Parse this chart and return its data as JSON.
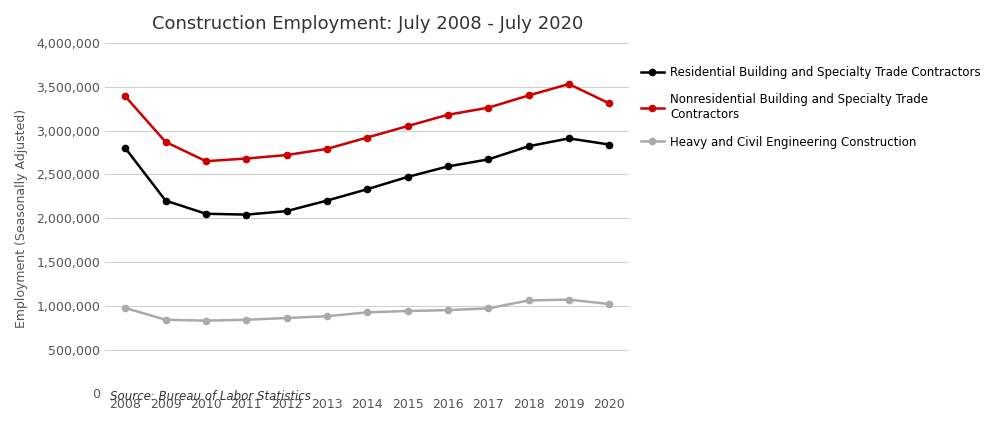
{
  "title": "Construction Employment: July 2008 - July 2020",
  "ylabel": "Employment (Seasonally Adjusted)",
  "source": "Source: Bureau of Labor Statistics",
  "years": [
    2008,
    2009,
    2010,
    2011,
    2012,
    2013,
    2014,
    2015,
    2016,
    2017,
    2018,
    2019,
    2020
  ],
  "residential": [
    2800000,
    2200000,
    2050000,
    2040000,
    2080000,
    2200000,
    2330000,
    2470000,
    2590000,
    2670000,
    2820000,
    2910000,
    2840000
  ],
  "nonresidential": [
    3390000,
    2870000,
    2650000,
    2680000,
    2720000,
    2790000,
    2920000,
    3050000,
    3180000,
    3260000,
    3400000,
    3530000,
    3310000
  ],
  "heavy": [
    975000,
    840000,
    830000,
    840000,
    860000,
    880000,
    925000,
    940000,
    950000,
    970000,
    1060000,
    1070000,
    1020000
  ],
  "residential_color": "#000000",
  "nonresidential_color": "#cc0000",
  "heavy_color": "#aaaaaa",
  "ylim": [
    0,
    4000000
  ],
  "yticks": [
    0,
    500000,
    1000000,
    1500000,
    2000000,
    2500000,
    3000000,
    3500000,
    4000000
  ],
  "title_fontsize": 13,
  "legend_residential": "Residential Building and Specialty Trade Contractors",
  "legend_nonresidential": "Nonresidential Building and Specialty Trade\nContractors",
  "legend_heavy": "Heavy and Civil Engineering Construction",
  "background_color": "#ffffff"
}
